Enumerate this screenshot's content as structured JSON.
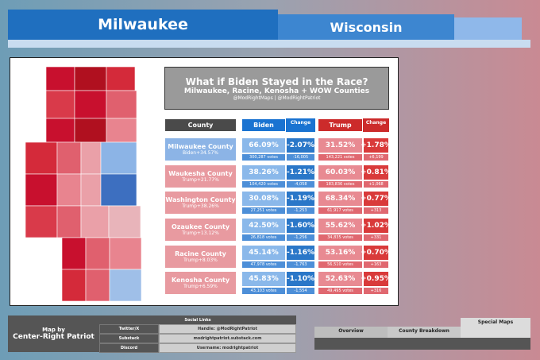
{
  "header": {
    "title": "Milwaukee",
    "subtitle": "Wisconsin"
  },
  "panel": {
    "title": "What if Biden Stayed in the Race?",
    "subtitle": "Milwaukee, Racine, Kenosha + WOW Counties",
    "handles": "@ModRightMaps | @ModRightPatriot"
  },
  "table": {
    "columns": [
      "County",
      "Biden",
      "Change",
      "Trump",
      "Change"
    ],
    "rows": [
      {
        "county": "Milwaukee County",
        "margin": "Biden+34.57%",
        "color": "#8cb4e6",
        "biden": "66.09%",
        "biden_change": "-2.07%",
        "biden_votes": "300,287 votes",
        "biden_votes_change": "-16,005",
        "trump": "31.52%",
        "trump_change": "+1.78%",
        "trump_votes": "143,221 votes",
        "trump_votes_change": "+6,199"
      },
      {
        "county": "Waukesha County",
        "margin": "Trump+21.77%",
        "color": "#e89aa0",
        "biden": "38.26%",
        "biden_change": "-1.21%",
        "biden_votes": "104,420 votes",
        "biden_votes_change": "-4,058",
        "trump": "60.03%",
        "trump_change": "+0.81%",
        "trump_votes": "183,836 votes",
        "trump_votes_change": "+1,068"
      },
      {
        "county": "Washington County",
        "margin": "Trump+38.26%",
        "color": "#e89aa0",
        "biden": "30.08%",
        "biden_change": "-1.19%",
        "biden_votes": "27,251 votes",
        "biden_votes_change": "-1,253",
        "trump": "68.34%",
        "trump_change": "+0.77%",
        "trump_votes": "61,917 votes",
        "trump_votes_change": "+313"
      },
      {
        "county": "Ozaukee County",
        "margin": "Trump+13.12%",
        "color": "#e89aa0",
        "biden": "42.50%",
        "biden_change": "-1.60%",
        "biden_votes": "26,818 votes",
        "biden_votes_change": "-1,256",
        "trump": "55.62%",
        "trump_change": "+1.02%",
        "trump_votes": "34,835 votes",
        "trump_votes_change": "+331"
      },
      {
        "county": "Racine County",
        "margin": "Trump+8.03%",
        "color": "#e89aa0",
        "biden": "45.14%",
        "biden_change": "-1.16%",
        "biden_votes": "47,978 votes",
        "biden_votes_change": "-1,763",
        "trump": "53.16%",
        "trump_change": "+0.70%",
        "trump_votes": "56,510 votes",
        "trump_votes_change": "+163"
      },
      {
        "county": "Kenosha County",
        "margin": "Trump+6.59%",
        "color": "#e89aa0",
        "biden": "45.83%",
        "biden_change": "-1.10%",
        "biden_votes": "43,103 votes",
        "biden_votes_change": "-1,554",
        "trump": "52.63%",
        "trump_change": "+0.95%",
        "trump_votes": "49,495 votes",
        "trump_votes_change": "+316"
      }
    ]
  },
  "footer": {
    "credit_label": "Map by",
    "credit": "Center-Right Patriot",
    "social_title": "Social Links",
    "links": [
      {
        "label": "Twitter/X",
        "value": "Handle: @ModRightPatriot"
      },
      {
        "label": "Substack",
        "value": "modrightpatriot.substack.com"
      },
      {
        "label": "Discord",
        "value": "Username: modrightpatriot"
      }
    ]
  },
  "tabs": [
    "Overview",
    "County Breakdown",
    "Special Maps"
  ]
}
